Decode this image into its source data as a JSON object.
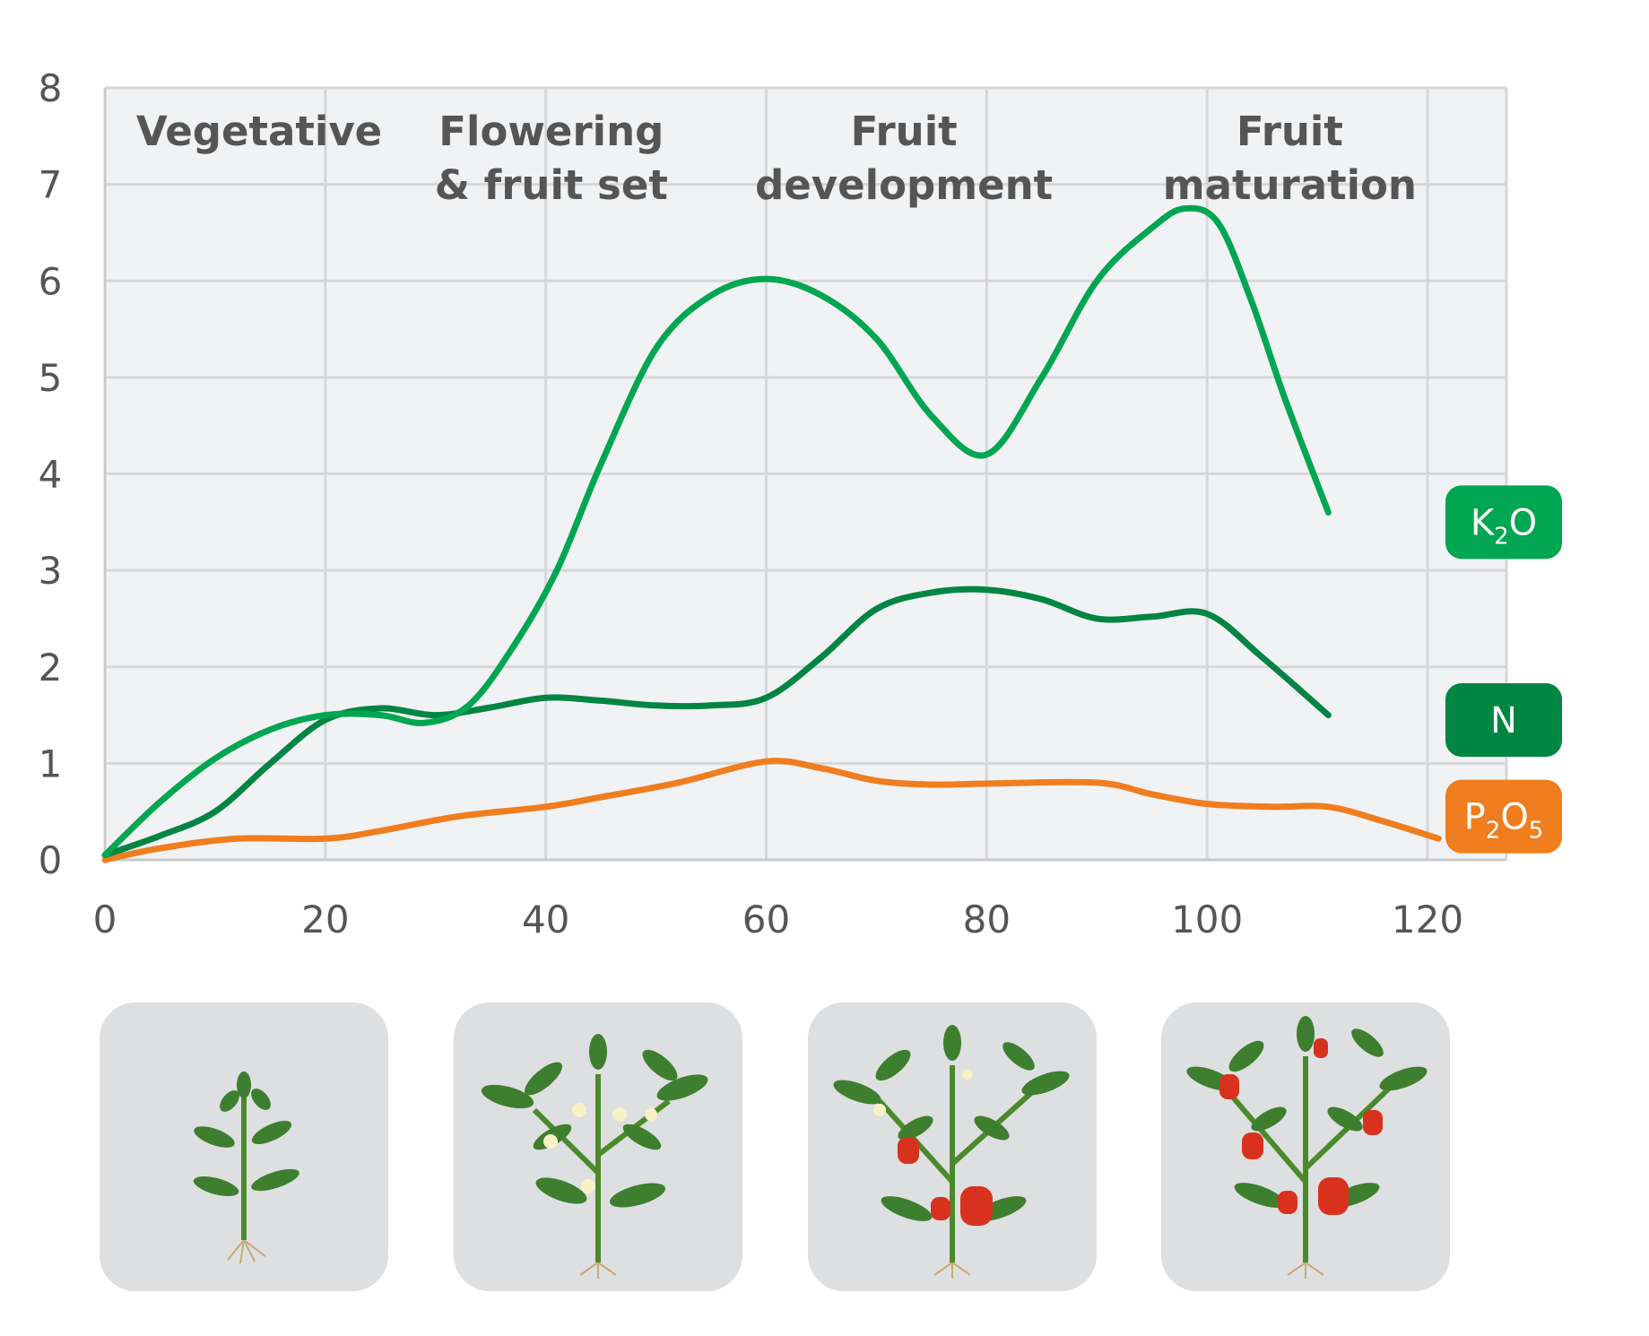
{
  "chart_data": {
    "type": "line",
    "title": "",
    "xlabel": "",
    "ylabel": "",
    "xlim": [
      0,
      128
    ],
    "ylim": [
      0,
      8
    ],
    "x_ticks": [
      0,
      20,
      40,
      60,
      80,
      100,
      120
    ],
    "y_ticks": [
      0,
      1,
      2,
      3,
      4,
      5,
      6,
      7,
      8
    ],
    "grid": true,
    "legend_position": "right",
    "stages": [
      {
        "lines": [
          "Vegetative"
        ],
        "x_center": 14
      },
      {
        "lines": [
          "Flowering",
          "& fruit set"
        ],
        "x_center": 40.5
      },
      {
        "lines": [
          "Fruit",
          "development"
        ],
        "x_center": 72.5
      },
      {
        "lines": [
          "Fruit",
          "maturation"
        ],
        "x_center": 107.5
      }
    ],
    "series": [
      {
        "name": "K2O",
        "legend": {
          "base": "K",
          "sub": "2",
          "tail": "O",
          "sub2": "",
          "y": 3.5
        },
        "color": "#00a651",
        "x": [
          0,
          5,
          10,
          15,
          20,
          25,
          29,
          33,
          37,
          41,
          45,
          50,
          55,
          60,
          65,
          70,
          75,
          80,
          85,
          90,
          95,
          98,
          101,
          104,
          107,
          111
        ],
        "y": [
          0.05,
          0.6,
          1.05,
          1.35,
          1.5,
          1.5,
          1.42,
          1.6,
          2.2,
          3.0,
          4.1,
          5.3,
          5.85,
          6.02,
          5.85,
          5.4,
          4.6,
          4.2,
          5.0,
          6.0,
          6.55,
          6.75,
          6.6,
          5.8,
          4.8,
          3.6
        ]
      },
      {
        "name": "N",
        "legend": {
          "base": "N",
          "sub": "",
          "tail": "",
          "sub2": "",
          "y": 1.45
        },
        "color": "#008542",
        "x": [
          0,
          5,
          10,
          15,
          20,
          25,
          30,
          35,
          40,
          45,
          50,
          55,
          60,
          65,
          70,
          75,
          80,
          85,
          90,
          95,
          100,
          105,
          111
        ],
        "y": [
          0.05,
          0.25,
          0.5,
          1.0,
          1.45,
          1.57,
          1.5,
          1.58,
          1.68,
          1.65,
          1.6,
          1.6,
          1.68,
          2.1,
          2.6,
          2.77,
          2.8,
          2.7,
          2.5,
          2.52,
          2.55,
          2.1,
          1.5
        ]
      },
      {
        "name": "P2O5",
        "legend": {
          "base": "P",
          "sub": "2",
          "tail": "O",
          "sub2": "5",
          "y": 0.45
        },
        "color": "#f07d1e",
        "x": [
          0,
          5,
          12,
          20,
          25,
          32,
          40,
          45,
          52,
          60,
          65,
          70,
          75,
          80,
          90,
          95,
          100,
          106,
          111,
          116,
          121
        ],
        "y": [
          0.0,
          0.12,
          0.22,
          0.22,
          0.3,
          0.45,
          0.55,
          0.65,
          0.8,
          1.02,
          0.95,
          0.82,
          0.78,
          0.79,
          0.8,
          0.68,
          0.58,
          0.55,
          0.55,
          0.4,
          0.22
        ]
      }
    ]
  },
  "panels": [
    {
      "name": "vegetative-plant",
      "left": 0
    },
    {
      "name": "flowering-plant"
    },
    {
      "name": "fruit-development-plant"
    },
    {
      "name": "fruit-maturation-plant"
    }
  ]
}
